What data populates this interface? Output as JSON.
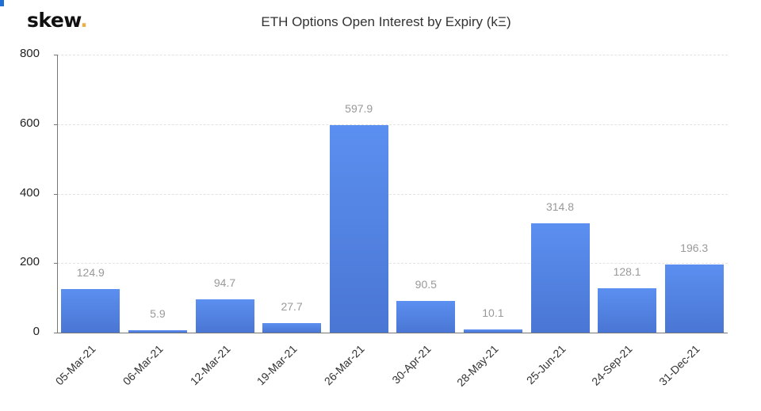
{
  "brand": {
    "name": "skew",
    "dot": ".",
    "accent": "#e8b04a"
  },
  "header": {
    "title": "ETH Options Open Interest by Expiry (kΞ)"
  },
  "colors": {
    "bar_top": "#5b8ff0",
    "bar_bottom": "#4a76d4",
    "value_label": "#999999",
    "grid": "#e3e3e3"
  },
  "y_axis": {
    "ticks": [
      "0",
      "200",
      "400",
      "600",
      "800"
    ]
  },
  "chart_data": {
    "type": "bar",
    "title": "ETH Options Open Interest by Expiry (kΞ)",
    "xlabel": "",
    "ylabel": "",
    "ylim": [
      0,
      800
    ],
    "yticks": [
      0,
      200,
      400,
      600,
      800
    ],
    "grid": true,
    "legend": null,
    "categories": [
      "05-Mar-21",
      "06-Mar-21",
      "12-Mar-21",
      "19-Mar-21",
      "26-Mar-21",
      "30-Apr-21",
      "28-May-21",
      "25-Jun-21",
      "24-Sep-21",
      "31-Dec-21"
    ],
    "values": [
      124.9,
      5.9,
      94.7,
      27.7,
      597.9,
      90.5,
      10.1,
      314.8,
      128.1,
      196.3
    ],
    "value_labels": [
      "124.9",
      "5.9",
      "94.7",
      "27.7",
      "597.9",
      "90.5",
      "10.1",
      "314.8",
      "128.1",
      "196.3"
    ]
  }
}
